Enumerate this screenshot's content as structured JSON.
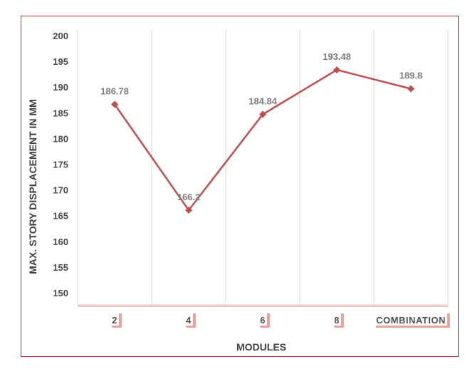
{
  "chart_data": {
    "type": "line",
    "categories": [
      "2",
      "4",
      "6",
      "8",
      "COMBINATION"
    ],
    "series": [
      {
        "values": [
          186.78,
          166.2,
          184.84,
          193.48,
          189.8
        ],
        "labels": [
          "186.78",
          "166.2",
          "184.84",
          "193.48",
          "189.8"
        ]
      }
    ],
    "xlabel": "MODULES",
    "ylabel": "MAX. STORY DISPLACEMENT IN MM",
    "y_ticks": [
      "150",
      "155",
      "160",
      "165",
      "170",
      "175",
      "180",
      "185",
      "190",
      "195",
      "200"
    ],
    "ylim": [
      150,
      200
    ],
    "grid": "vertical",
    "line_color": "#c0504d",
    "marker": "diamond",
    "legend": "none"
  }
}
